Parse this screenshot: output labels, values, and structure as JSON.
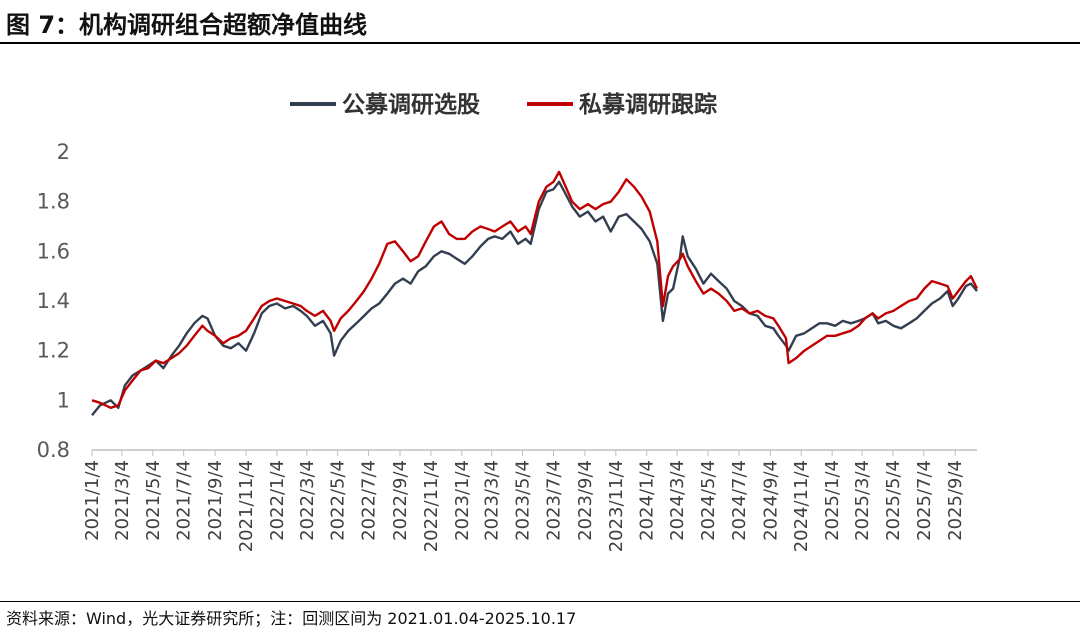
{
  "header": {
    "title": "图 7：机构调研组合超额净值曲线"
  },
  "footer": {
    "source": "资料来源：Wind，光大证券研究所；注：回测区间为 2021.01.04-2025.10.17"
  },
  "chart_data": {
    "type": "line",
    "title": "",
    "xlabel": "",
    "ylabel": "",
    "ylim": [
      0.8,
      2.0
    ],
    "yticks": [
      "0.8",
      "1",
      "1.2",
      "1.4",
      "1.6",
      "1.8",
      "2"
    ],
    "grid": false,
    "legend_position": "top-center",
    "x_tick_labels": [
      "2021/1/4",
      "2021/3/4",
      "2021/5/4",
      "2021/7/4",
      "2021/9/4",
      "2021/11/4",
      "2022/1/4",
      "2022/3/4",
      "2022/5/4",
      "2022/7/4",
      "2022/9/4",
      "2022/11/4",
      "2023/1/4",
      "2023/3/4",
      "2023/5/4",
      "2023/7/4",
      "2023/9/4",
      "2023/11/4",
      "2024/1/4",
      "2024/3/4",
      "2024/5/4",
      "2024/7/4",
      "2024/9/4",
      "2024/11/4",
      "2025/1/4",
      "2025/3/4",
      "2025/5/4",
      "2025/7/4",
      "2025/9/4"
    ],
    "series": [
      {
        "name": "公募调研选股",
        "color": "#333f50",
        "points": [
          [
            "2021-01-04",
            0.94
          ],
          [
            "2021-01-20",
            0.98
          ],
          [
            "2021-02-10",
            1.0
          ],
          [
            "2021-02-25",
            0.97
          ],
          [
            "2021-03-10",
            1.06
          ],
          [
            "2021-03-25",
            1.1
          ],
          [
            "2021-04-10",
            1.12
          ],
          [
            "2021-04-25",
            1.14
          ],
          [
            "2021-05-10",
            1.16
          ],
          [
            "2021-05-25",
            1.13
          ],
          [
            "2021-06-10",
            1.18
          ],
          [
            "2021-06-25",
            1.22
          ],
          [
            "2021-07-10",
            1.27
          ],
          [
            "2021-07-25",
            1.31
          ],
          [
            "2021-08-10",
            1.34
          ],
          [
            "2021-08-20",
            1.33
          ],
          [
            "2021-09-04",
            1.26
          ],
          [
            "2021-09-20",
            1.22
          ],
          [
            "2021-10-05",
            1.21
          ],
          [
            "2021-10-20",
            1.23
          ],
          [
            "2021-11-04",
            1.2
          ],
          [
            "2021-11-20",
            1.27
          ],
          [
            "2021-12-05",
            1.35
          ],
          [
            "2021-12-20",
            1.38
          ],
          [
            "2022-01-04",
            1.39
          ],
          [
            "2022-01-20",
            1.37
          ],
          [
            "2022-02-05",
            1.38
          ],
          [
            "2022-02-20",
            1.36
          ],
          [
            "2022-03-04",
            1.34
          ],
          [
            "2022-03-20",
            1.3
          ],
          [
            "2022-04-05",
            1.32
          ],
          [
            "2022-04-20",
            1.27
          ],
          [
            "2022-04-27",
            1.18
          ],
          [
            "2022-05-10",
            1.24
          ],
          [
            "2022-05-25",
            1.28
          ],
          [
            "2022-06-10",
            1.31
          ],
          [
            "2022-06-25",
            1.34
          ],
          [
            "2022-07-10",
            1.37
          ],
          [
            "2022-07-25",
            1.39
          ],
          [
            "2022-08-10",
            1.43
          ],
          [
            "2022-08-25",
            1.47
          ],
          [
            "2022-09-10",
            1.49
          ],
          [
            "2022-09-25",
            1.47
          ],
          [
            "2022-10-10",
            1.52
          ],
          [
            "2022-10-25",
            1.54
          ],
          [
            "2022-11-10",
            1.58
          ],
          [
            "2022-11-25",
            1.6
          ],
          [
            "2022-12-10",
            1.59
          ],
          [
            "2022-12-25",
            1.57
          ],
          [
            "2023-01-10",
            1.55
          ],
          [
            "2023-01-25",
            1.58
          ],
          [
            "2023-02-10",
            1.62
          ],
          [
            "2023-02-25",
            1.65
          ],
          [
            "2023-03-10",
            1.66
          ],
          [
            "2023-03-25",
            1.65
          ],
          [
            "2023-04-10",
            1.68
          ],
          [
            "2023-04-25",
            1.63
          ],
          [
            "2023-05-10",
            1.65
          ],
          [
            "2023-05-20",
            1.63
          ],
          [
            "2023-06-05",
            1.77
          ],
          [
            "2023-06-20",
            1.84
          ],
          [
            "2023-07-04",
            1.85
          ],
          [
            "2023-07-15",
            1.88
          ],
          [
            "2023-07-28",
            1.83
          ],
          [
            "2023-08-10",
            1.78
          ],
          [
            "2023-08-25",
            1.74
          ],
          [
            "2023-09-10",
            1.76
          ],
          [
            "2023-09-25",
            1.72
          ],
          [
            "2023-10-10",
            1.74
          ],
          [
            "2023-10-25",
            1.68
          ],
          [
            "2023-11-10",
            1.74
          ],
          [
            "2023-11-25",
            1.75
          ],
          [
            "2023-12-10",
            1.72
          ],
          [
            "2023-12-25",
            1.69
          ],
          [
            "2024-01-10",
            1.64
          ],
          [
            "2024-01-25",
            1.55
          ],
          [
            "2024-02-05",
            1.32
          ],
          [
            "2024-02-15",
            1.43
          ],
          [
            "2024-02-25",
            1.45
          ],
          [
            "2024-03-10",
            1.58
          ],
          [
            "2024-03-15",
            1.66
          ],
          [
            "2024-03-25",
            1.58
          ],
          [
            "2024-04-10",
            1.53
          ],
          [
            "2024-04-25",
            1.47
          ],
          [
            "2024-05-10",
            1.51
          ],
          [
            "2024-05-25",
            1.48
          ],
          [
            "2024-06-10",
            1.45
          ],
          [
            "2024-06-25",
            1.4
          ],
          [
            "2024-07-10",
            1.38
          ],
          [
            "2024-07-25",
            1.35
          ],
          [
            "2024-08-10",
            1.34
          ],
          [
            "2024-08-25",
            1.3
          ],
          [
            "2024-09-10",
            1.29
          ],
          [
            "2024-09-20",
            1.26
          ],
          [
            "2024-10-05",
            1.22
          ],
          [
            "2024-10-10",
            1.2
          ],
          [
            "2024-10-25",
            1.26
          ],
          [
            "2024-11-10",
            1.27
          ],
          [
            "2024-11-25",
            1.29
          ],
          [
            "2024-12-10",
            1.31
          ],
          [
            "2024-12-25",
            1.31
          ],
          [
            "2025-01-10",
            1.3
          ],
          [
            "2025-01-25",
            1.32
          ],
          [
            "2025-02-10",
            1.31
          ],
          [
            "2025-02-25",
            1.32
          ],
          [
            "2025-03-10",
            1.33
          ],
          [
            "2025-03-25",
            1.35
          ],
          [
            "2025-04-05",
            1.31
          ],
          [
            "2025-04-20",
            1.32
          ],
          [
            "2025-05-05",
            1.3
          ],
          [
            "2025-05-20",
            1.29
          ],
          [
            "2025-06-05",
            1.31
          ],
          [
            "2025-06-20",
            1.33
          ],
          [
            "2025-07-05",
            1.36
          ],
          [
            "2025-07-20",
            1.39
          ],
          [
            "2025-08-05",
            1.41
          ],
          [
            "2025-08-20",
            1.44
          ],
          [
            "2025-08-30",
            1.38
          ],
          [
            "2025-09-10",
            1.41
          ],
          [
            "2025-09-25",
            1.46
          ],
          [
            "2025-10-05",
            1.47
          ],
          [
            "2025-10-17",
            1.44
          ]
        ]
      },
      {
        "name": "私募调研跟踪",
        "color": "#c00000",
        "points": [
          [
            "2021-01-04",
            1.0
          ],
          [
            "2021-01-20",
            0.99
          ],
          [
            "2021-02-10",
            0.97
          ],
          [
            "2021-02-25",
            0.98
          ],
          [
            "2021-03-10",
            1.04
          ],
          [
            "2021-03-25",
            1.08
          ],
          [
            "2021-04-10",
            1.12
          ],
          [
            "2021-04-25",
            1.13
          ],
          [
            "2021-05-10",
            1.16
          ],
          [
            "2021-05-25",
            1.15
          ],
          [
            "2021-06-10",
            1.17
          ],
          [
            "2021-06-25",
            1.19
          ],
          [
            "2021-07-10",
            1.22
          ],
          [
            "2021-07-25",
            1.26
          ],
          [
            "2021-08-10",
            1.3
          ],
          [
            "2021-08-20",
            1.28
          ],
          [
            "2021-09-04",
            1.26
          ],
          [
            "2021-09-20",
            1.23
          ],
          [
            "2021-10-05",
            1.25
          ],
          [
            "2021-10-20",
            1.26
          ],
          [
            "2021-11-04",
            1.28
          ],
          [
            "2021-11-20",
            1.33
          ],
          [
            "2021-12-05",
            1.38
          ],
          [
            "2021-12-20",
            1.4
          ],
          [
            "2022-01-04",
            1.41
          ],
          [
            "2022-01-20",
            1.4
          ],
          [
            "2022-02-05",
            1.39
          ],
          [
            "2022-02-20",
            1.38
          ],
          [
            "2022-03-04",
            1.36
          ],
          [
            "2022-03-20",
            1.34
          ],
          [
            "2022-04-05",
            1.36
          ],
          [
            "2022-04-20",
            1.32
          ],
          [
            "2022-04-27",
            1.28
          ],
          [
            "2022-05-10",
            1.33
          ],
          [
            "2022-05-25",
            1.36
          ],
          [
            "2022-06-10",
            1.4
          ],
          [
            "2022-06-25",
            1.44
          ],
          [
            "2022-07-10",
            1.49
          ],
          [
            "2022-07-25",
            1.55
          ],
          [
            "2022-08-10",
            1.63
          ],
          [
            "2022-08-25",
            1.64
          ],
          [
            "2022-09-10",
            1.6
          ],
          [
            "2022-09-25",
            1.56
          ],
          [
            "2022-10-10",
            1.58
          ],
          [
            "2022-10-25",
            1.64
          ],
          [
            "2022-11-10",
            1.7
          ],
          [
            "2022-11-25",
            1.72
          ],
          [
            "2022-12-10",
            1.67
          ],
          [
            "2022-12-25",
            1.65
          ],
          [
            "2023-01-10",
            1.65
          ],
          [
            "2023-01-25",
            1.68
          ],
          [
            "2023-02-10",
            1.7
          ],
          [
            "2023-02-25",
            1.69
          ],
          [
            "2023-03-10",
            1.68
          ],
          [
            "2023-03-25",
            1.7
          ],
          [
            "2023-04-10",
            1.72
          ],
          [
            "2023-04-25",
            1.68
          ],
          [
            "2023-05-10",
            1.7
          ],
          [
            "2023-05-20",
            1.67
          ],
          [
            "2023-06-05",
            1.8
          ],
          [
            "2023-06-20",
            1.86
          ],
          [
            "2023-07-04",
            1.88
          ],
          [
            "2023-07-15",
            1.92
          ],
          [
            "2023-07-28",
            1.86
          ],
          [
            "2023-08-10",
            1.8
          ],
          [
            "2023-08-25",
            1.77
          ],
          [
            "2023-09-10",
            1.79
          ],
          [
            "2023-09-25",
            1.77
          ],
          [
            "2023-10-10",
            1.79
          ],
          [
            "2023-10-25",
            1.8
          ],
          [
            "2023-11-10",
            1.84
          ],
          [
            "2023-11-25",
            1.89
          ],
          [
            "2023-12-10",
            1.86
          ],
          [
            "2023-12-25",
            1.82
          ],
          [
            "2024-01-10",
            1.76
          ],
          [
            "2024-01-25",
            1.64
          ],
          [
            "2024-02-05",
            1.38
          ],
          [
            "2024-02-15",
            1.5
          ],
          [
            "2024-02-25",
            1.54
          ],
          [
            "2024-03-10",
            1.57
          ],
          [
            "2024-03-15",
            1.59
          ],
          [
            "2024-03-25",
            1.54
          ],
          [
            "2024-04-10",
            1.48
          ],
          [
            "2024-04-25",
            1.43
          ],
          [
            "2024-05-10",
            1.45
          ],
          [
            "2024-05-25",
            1.43
          ],
          [
            "2024-06-10",
            1.4
          ],
          [
            "2024-06-25",
            1.36
          ],
          [
            "2024-07-10",
            1.37
          ],
          [
            "2024-07-25",
            1.35
          ],
          [
            "2024-08-10",
            1.36
          ],
          [
            "2024-08-25",
            1.34
          ],
          [
            "2024-09-10",
            1.33
          ],
          [
            "2024-09-20",
            1.3
          ],
          [
            "2024-10-05",
            1.25
          ],
          [
            "2024-10-10",
            1.15
          ],
          [
            "2024-10-25",
            1.17
          ],
          [
            "2024-11-10",
            1.2
          ],
          [
            "2024-11-25",
            1.22
          ],
          [
            "2024-12-10",
            1.24
          ],
          [
            "2024-12-25",
            1.26
          ],
          [
            "2025-01-10",
            1.26
          ],
          [
            "2025-01-25",
            1.27
          ],
          [
            "2025-02-10",
            1.28
          ],
          [
            "2025-02-25",
            1.3
          ],
          [
            "2025-03-10",
            1.33
          ],
          [
            "2025-03-25",
            1.35
          ],
          [
            "2025-04-05",
            1.33
          ],
          [
            "2025-04-20",
            1.35
          ],
          [
            "2025-05-05",
            1.36
          ],
          [
            "2025-05-20",
            1.38
          ],
          [
            "2025-06-05",
            1.4
          ],
          [
            "2025-06-20",
            1.41
          ],
          [
            "2025-07-05",
            1.45
          ],
          [
            "2025-07-20",
            1.48
          ],
          [
            "2025-08-05",
            1.47
          ],
          [
            "2025-08-20",
            1.46
          ],
          [
            "2025-08-30",
            1.41
          ],
          [
            "2025-09-10",
            1.44
          ],
          [
            "2025-09-25",
            1.48
          ],
          [
            "2025-10-05",
            1.5
          ],
          [
            "2025-10-17",
            1.45
          ]
        ]
      }
    ]
  }
}
